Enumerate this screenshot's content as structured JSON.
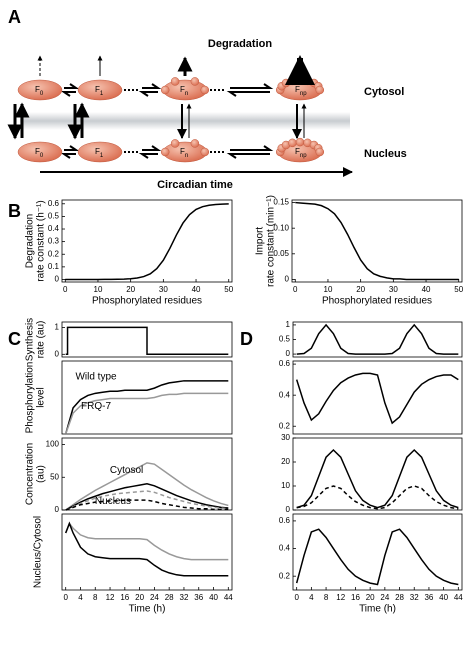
{
  "panels": [
    "A",
    "B",
    "C",
    "D"
  ],
  "diagram": {
    "title": "Degradation",
    "top": "Cytosol",
    "bottom": "Nucleus",
    "axis": "Circadian time",
    "nodes": [
      {
        "label": "F",
        "sub": "0"
      },
      {
        "label": "F",
        "sub": "1"
      },
      {
        "label": "F",
        "sub": "n"
      },
      {
        "label": "F",
        "sub": "np"
      }
    ]
  },
  "chart_data": [
    {
      "type": "line",
      "xlabel": "Phosphorylated residues",
      "ylabel": [
        "Degradation",
        "rate constant (h⁻¹)"
      ],
      "xlim": [
        -1,
        51
      ],
      "ylim": [
        -0.02,
        0.63
      ],
      "xticks": [
        0,
        10,
        20,
        30,
        40,
        50
      ],
      "yticks": [
        0,
        0.1,
        0.2,
        0.3,
        0.4,
        0.5,
        0.6
      ],
      "x": [
        0,
        2,
        4,
        6,
        8,
        10,
        12,
        14,
        16,
        18,
        20,
        22,
        24,
        26,
        28,
        30,
        32,
        34,
        36,
        38,
        40,
        42,
        44,
        46,
        48,
        50
      ],
      "series": [
        {
          "color": "#000",
          "values": [
            0,
            0,
            0,
            0,
            0,
            0,
            0.001,
            0.001,
            0.002,
            0.003,
            0.006,
            0.012,
            0.023,
            0.045,
            0.086,
            0.153,
            0.247,
            0.353,
            0.447,
            0.514,
            0.555,
            0.577,
            0.588,
            0.594,
            0.597,
            0.599
          ]
        }
      ]
    },
    {
      "type": "line",
      "xlabel": "Phosphorylated residues",
      "ylabel": [
        "Import",
        "rate constant (min⁻¹)"
      ],
      "xlim": [
        -1,
        51
      ],
      "ylim": [
        -0.005,
        0.155
      ],
      "xticks": [
        0,
        10,
        20,
        30,
        40,
        50
      ],
      "yticks": [
        0,
        0.05,
        {
          "value": 0.1,
          "label": "0.10"
        },
        0.15
      ],
      "x": [
        0,
        2,
        4,
        6,
        8,
        10,
        12,
        14,
        16,
        18,
        20,
        22,
        24,
        26,
        28,
        30,
        32,
        34,
        36,
        38,
        40,
        42,
        44,
        46,
        48,
        50
      ],
      "series": [
        {
          "color": "#000",
          "values": [
            0.15,
            0.149,
            0.148,
            0.147,
            0.144,
            0.138,
            0.128,
            0.111,
            0.088,
            0.062,
            0.038,
            0.021,
            0.011,
            0.006,
            0.003,
            0.001,
            0.001,
            0,
            0,
            0,
            0,
            0,
            0,
            0,
            0,
            0
          ]
        }
      ]
    },
    {
      "type": "line",
      "ylabel": [
        "Synthesis",
        "rate (au)"
      ],
      "xlim": [
        -1,
        45
      ],
      "ylim": [
        -0.1,
        1.2
      ],
      "yticks": [
        0,
        1
      ],
      "x": [
        0,
        0.5,
        0.5,
        22,
        22,
        44
      ],
      "series": [
        {
          "color": "#000",
          "values": [
            0,
            0,
            1,
            1,
            0,
            0
          ]
        }
      ]
    },
    {
      "type": "line",
      "ylabel": [
        "Phosphorylation",
        "level"
      ],
      "xlim": [
        -1,
        45
      ],
      "ylim": [
        0,
        0.7
      ],
      "x": [
        0,
        2,
        4,
        6,
        8,
        10,
        12,
        14,
        16,
        18,
        20,
        22,
        24,
        26,
        28,
        30,
        32,
        34,
        36,
        38,
        40,
        42,
        44
      ],
      "series": [
        {
          "color": "#000",
          "values": [
            0,
            0.25,
            0.33,
            0.37,
            0.39,
            0.4,
            0.41,
            0.41,
            0.42,
            0.42,
            0.42,
            0.42,
            0.44,
            0.47,
            0.49,
            0.5,
            0.51,
            0.51,
            0.51,
            0.51,
            0.51,
            0.51,
            0.51
          ]
        },
        {
          "color": "#999",
          "values": [
            0,
            0.2,
            0.27,
            0.3,
            0.32,
            0.33,
            0.34,
            0.34,
            0.34,
            0.34,
            0.34,
            0.34,
            0.35,
            0.37,
            0.38,
            0.38,
            0.39,
            0.39,
            0.39,
            0.39,
            0.39,
            0.39,
            0.39
          ]
        }
      ],
      "annotations": [
        {
          "text": "Wild type",
          "color": "#000"
        },
        {
          "text": "FRQ-7",
          "color": "#999"
        }
      ]
    },
    {
      "type": "line",
      "ylabel": [
        "Concentration",
        "(au)"
      ],
      "xlim": [
        -1,
        45
      ],
      "ylim": [
        0,
        110
      ],
      "yticks": [
        0,
        50,
        100
      ],
      "x": [
        0,
        2,
        4,
        6,
        8,
        10,
        12,
        14,
        16,
        18,
        20,
        22,
        24,
        26,
        28,
        30,
        32,
        34,
        36,
        38,
        40,
        42,
        44
      ],
      "series": [
        {
          "color": "#999",
          "values": [
            0,
            8,
            16,
            23,
            30,
            36,
            42,
            48,
            54,
            60,
            66,
            72,
            70,
            62,
            54,
            46,
            38,
            31,
            25,
            19,
            14,
            10,
            7
          ]
        },
        {
          "color": "#000",
          "values": [
            0,
            6,
            12,
            17,
            21,
            25,
            28,
            31,
            34,
            36,
            38,
            40,
            37,
            32,
            27,
            22,
            18,
            14,
            11,
            8,
            6,
            4,
            3
          ]
        },
        {
          "color": "#999",
          "dash": true,
          "values": [
            0,
            5,
            10,
            14,
            18,
            21,
            23,
            25,
            26,
            27,
            28,
            29,
            27,
            23,
            19,
            16,
            13,
            10,
            8,
            6,
            4,
            3,
            2
          ]
        },
        {
          "color": "#000",
          "dash": true,
          "values": [
            0,
            4,
            8,
            10,
            12,
            13,
            14,
            14,
            15,
            15,
            15,
            15,
            13,
            10,
            8,
            6,
            4,
            3,
            2,
            2,
            1,
            1,
            1
          ]
        }
      ],
      "annotations": [
        {
          "text": "Cytosol",
          "color": "#000"
        },
        {
          "text": "Nucleus",
          "color": "#000"
        }
      ]
    },
    {
      "type": "line",
      "ylabel": [
        "Nucleus/Cytosol"
      ],
      "xlabel": "Time (h)",
      "xlim": [
        -1,
        45
      ],
      "ylim": [
        0,
        0.8
      ],
      "xticks": [
        0,
        4,
        8,
        12,
        16,
        20,
        24,
        28,
        32,
        36,
        40,
        44
      ],
      "x": [
        0,
        1,
        2,
        4,
        6,
        8,
        10,
        12,
        14,
        16,
        18,
        20,
        22,
        24,
        26,
        28,
        30,
        32,
        34,
        36,
        38,
        40,
        42,
        44
      ],
      "series": [
        {
          "color": "#999",
          "values": [
            0.6,
            0.7,
            0.65,
            0.58,
            0.55,
            0.54,
            0.54,
            0.54,
            0.54,
            0.54,
            0.54,
            0.54,
            0.53,
            0.47,
            0.42,
            0.38,
            0.35,
            0.33,
            0.32,
            0.32,
            0.32,
            0.32,
            0.32,
            0.32
          ]
        },
        {
          "color": "#000",
          "values": [
            0.6,
            0.7,
            0.6,
            0.45,
            0.38,
            0.35,
            0.34,
            0.33,
            0.33,
            0.33,
            0.33,
            0.33,
            0.32,
            0.26,
            0.21,
            0.18,
            0.16,
            0.15,
            0.15,
            0.15,
            0.15,
            0.15,
            0.15,
            0.15
          ]
        }
      ]
    },
    {
      "type": "line",
      "xlim": [
        -1,
        45
      ],
      "ylim": [
        -0.1,
        1.1
      ],
      "yticks": [
        0,
        0.5,
        1
      ],
      "x": [
        0,
        2,
        4,
        6,
        8,
        10,
        12,
        14,
        16,
        18,
        20,
        22,
        24,
        26,
        28,
        30,
        32,
        34,
        36,
        38,
        40,
        42,
        44
      ],
      "series": [
        {
          "color": "#000",
          "values": [
            0,
            0.02,
            0.2,
            0.7,
            1,
            0.7,
            0.2,
            0.02,
            0,
            0,
            0,
            0,
            0,
            0.02,
            0.2,
            0.7,
            1,
            0.7,
            0.2,
            0.02,
            0,
            0,
            0
          ]
        }
      ]
    },
    {
      "type": "line",
      "xlim": [
        -1,
        45
      ],
      "ylim": [
        0.15,
        0.62
      ],
      "yticks": [
        0.2,
        0.4,
        0.6
      ],
      "x": [
        0,
        2,
        4,
        6,
        8,
        10,
        12,
        14,
        16,
        18,
        20,
        22,
        24,
        26,
        28,
        30,
        32,
        34,
        36,
        38,
        40,
        42,
        44
      ],
      "series": [
        {
          "color": "#000",
          "values": [
            0.5,
            0.35,
            0.24,
            0.28,
            0.36,
            0.43,
            0.48,
            0.51,
            0.53,
            0.54,
            0.54,
            0.53,
            0.35,
            0.22,
            0.26,
            0.34,
            0.42,
            0.47,
            0.5,
            0.52,
            0.53,
            0.53,
            0.5
          ]
        }
      ]
    },
    {
      "type": "line",
      "xlim": [
        -1,
        45
      ],
      "ylim": [
        0,
        30
      ],
      "yticks": [
        0,
        10,
        20,
        30
      ],
      "x": [
        0,
        2,
        4,
        6,
        8,
        10,
        12,
        14,
        16,
        18,
        20,
        22,
        24,
        26,
        28,
        30,
        32,
        34,
        36,
        38,
        40,
        42,
        44
      ],
      "series": [
        {
          "color": "#000",
          "values": [
            1,
            2,
            6,
            14,
            22,
            25,
            22,
            15,
            8,
            4,
            2,
            1,
            2,
            6,
            14,
            22,
            25,
            22,
            15,
            8,
            4,
            2,
            1
          ]
        },
        {
          "color": "#000",
          "dash": true,
          "values": [
            1,
            1.5,
            3,
            6,
            9,
            10,
            9,
            6,
            3.5,
            2,
            1,
            0.5,
            1,
            3,
            6,
            9,
            10,
            9,
            6,
            3.5,
            2,
            1,
            0.5
          ]
        }
      ]
    },
    {
      "type": "line",
      "xlabel": "Time (h)",
      "xlim": [
        -1,
        45
      ],
      "ylim": [
        0.1,
        0.65
      ],
      "yticks": [
        0.2,
        0.4,
        0.6
      ],
      "xticks": [
        0,
        4,
        8,
        12,
        16,
        20,
        24,
        28,
        32,
        36,
        40,
        44
      ],
      "x": [
        0,
        2,
        4,
        6,
        8,
        10,
        12,
        14,
        16,
        18,
        20,
        22,
        24,
        26,
        28,
        30,
        32,
        34,
        36,
        38,
        40,
        42,
        44
      ],
      "series": [
        {
          "color": "#000",
          "values": [
            0.15,
            0.35,
            0.52,
            0.54,
            0.48,
            0.4,
            0.32,
            0.25,
            0.2,
            0.17,
            0.15,
            0.14,
            0.35,
            0.52,
            0.54,
            0.48,
            0.4,
            0.32,
            0.25,
            0.2,
            0.17,
            0.15,
            0.14
          ]
        }
      ]
    }
  ]
}
